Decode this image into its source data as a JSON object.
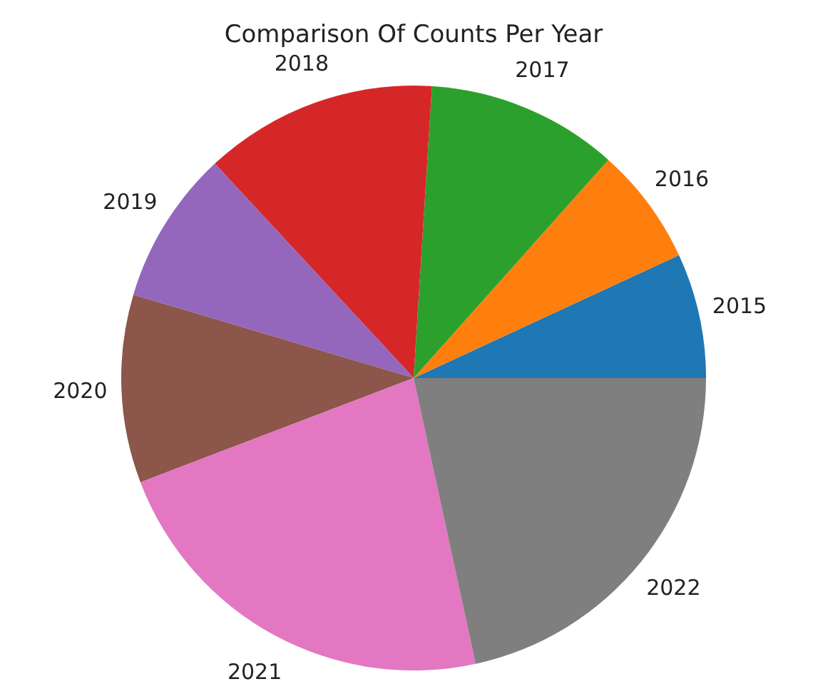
{
  "chart_data": {
    "type": "pie",
    "title": "Comparison Of Counts Per Year",
    "categories": [
      "2015",
      "2016",
      "2017",
      "2018",
      "2019",
      "2020",
      "2021",
      "2022"
    ],
    "values": [
      6.9,
      6.5,
      10.6,
      12.9,
      8.5,
      10.4,
      22.6,
      21.6
    ],
    "colors": [
      "#1f77b4",
      "#ff7f0e",
      "#2ca02c",
      "#d62728",
      "#9467bd",
      "#8c564b",
      "#e377c2",
      "#7f7f7f"
    ],
    "legend": false
  }
}
